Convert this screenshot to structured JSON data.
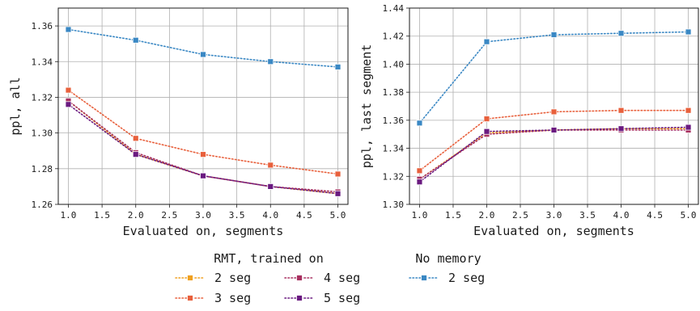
{
  "chart_data": [
    {
      "type": "line",
      "xlabel": "Evaluated on, segments",
      "ylabel": "ppl, all",
      "xlim": [
        0.85,
        5.15
      ],
      "ylim": [
        1.26,
        1.37
      ],
      "xticks": [
        "1.0",
        "1.5",
        "2.0",
        "2.5",
        "3.0",
        "3.5",
        "4.0",
        "4.5",
        "5.0"
      ],
      "yticks": [
        "1.26",
        "1.28",
        "1.30",
        "1.32",
        "1.34",
        "1.36"
      ],
      "grid": true,
      "x": [
        1.0,
        2.0,
        3.0,
        4.0,
        5.0
      ],
      "series": [
        {
          "group": "RMT, trained on",
          "name": "2 seg",
          "color": "#f0a020",
          "values": [
            1.318,
            1.288,
            1.276,
            1.27,
            1.266
          ]
        },
        {
          "group": "RMT, trained on",
          "name": "3 seg",
          "color": "#e8603c",
          "values": [
            1.324,
            1.297,
            1.288,
            1.282,
            1.277
          ]
        },
        {
          "group": "RMT, trained on",
          "name": "4 seg",
          "color": "#a83060",
          "values": [
            1.318,
            1.289,
            1.276,
            1.27,
            1.267
          ]
        },
        {
          "group": "RMT, trained on",
          "name": "5 seg",
          "color": "#6a1a80",
          "values": [
            1.316,
            1.288,
            1.276,
            1.27,
            1.266
          ]
        },
        {
          "group": "No memory",
          "name": "2 seg",
          "color": "#3a88c4",
          "values": [
            1.358,
            1.352,
            1.344,
            1.34,
            1.337
          ]
        }
      ]
    },
    {
      "type": "line",
      "xlabel": "Evaluated on, segments",
      "ylabel": "ppl, last segment",
      "xlim": [
        0.85,
        5.15
      ],
      "ylim": [
        1.3,
        1.44
      ],
      "xticks": [
        "1.0",
        "1.5",
        "2.0",
        "2.5",
        "3.0",
        "3.5",
        "4.0",
        "4.5",
        "5.0"
      ],
      "yticks": [
        "1.30",
        "1.32",
        "1.34",
        "1.36",
        "1.38",
        "1.40",
        "1.42",
        "1.44"
      ],
      "grid": true,
      "x": [
        1.0,
        2.0,
        3.0,
        4.0,
        5.0
      ],
      "series": [
        {
          "group": "RMT, trained on",
          "name": "2 seg",
          "color": "#f0a020",
          "values": [
            1.318,
            1.351,
            1.353,
            1.354,
            1.354
          ]
        },
        {
          "group": "RMT, trained on",
          "name": "3 seg",
          "color": "#e8603c",
          "values": [
            1.324,
            1.361,
            1.366,
            1.367,
            1.367
          ]
        },
        {
          "group": "RMT, trained on",
          "name": "4 seg",
          "color": "#a83060",
          "values": [
            1.318,
            1.35,
            1.353,
            1.353,
            1.353
          ]
        },
        {
          "group": "RMT, trained on",
          "name": "5 seg",
          "color": "#6a1a80",
          "values": [
            1.316,
            1.352,
            1.353,
            1.354,
            1.355
          ]
        },
        {
          "group": "No memory",
          "name": "2 seg",
          "color": "#3a88c4",
          "values": [
            1.358,
            1.416,
            1.421,
            1.422,
            1.423
          ]
        }
      ]
    }
  ],
  "legend": {
    "group_rmt_title": "RMT, trained on",
    "group_nomem_title": "No memory",
    "entries": [
      {
        "label": "2 seg",
        "color": "#f0a020"
      },
      {
        "label": "3 seg",
        "color": "#e8603c"
      },
      {
        "label": "4 seg",
        "color": "#a83060"
      },
      {
        "label": "5 seg",
        "color": "#6a1a80"
      },
      {
        "label": "2 seg",
        "color": "#3a88c4"
      }
    ]
  }
}
